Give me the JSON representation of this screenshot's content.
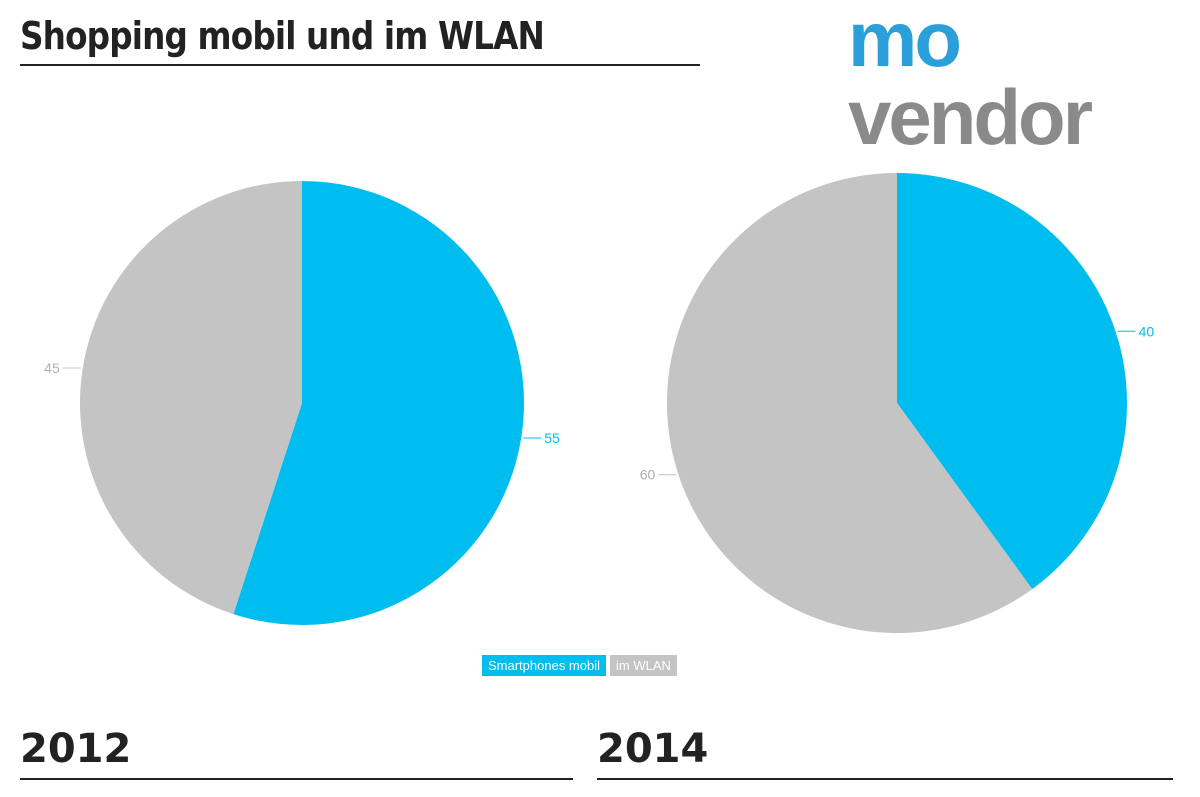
{
  "chart_data": [
    {
      "type": "pie",
      "title": "2012",
      "categories": [
        "Smartphones mobil",
        "im WLAN"
      ],
      "values": [
        55,
        45
      ],
      "colors": [
        "#00bdf0",
        "#c4c4c4"
      ],
      "start": "top",
      "direction": "clockwise"
    },
    {
      "type": "pie",
      "title": "2014",
      "categories": [
        "Smartphones mobil",
        "im WLAN"
      ],
      "values": [
        40,
        60
      ],
      "colors": [
        "#00bdf0",
        "#c4c4c4"
      ],
      "start": "top",
      "direction": "clockwise"
    }
  ],
  "header": {
    "title": "Shopping mobil und im WLAN"
  },
  "logo": {
    "line1": "mo",
    "line2": "vendor"
  },
  "legend": [
    {
      "label": "Smartphones mobil",
      "color": "#00bdf0"
    },
    {
      "label": "im WLAN",
      "color": "#c4c4c4"
    }
  ],
  "years": [
    "2012",
    "2014"
  ]
}
